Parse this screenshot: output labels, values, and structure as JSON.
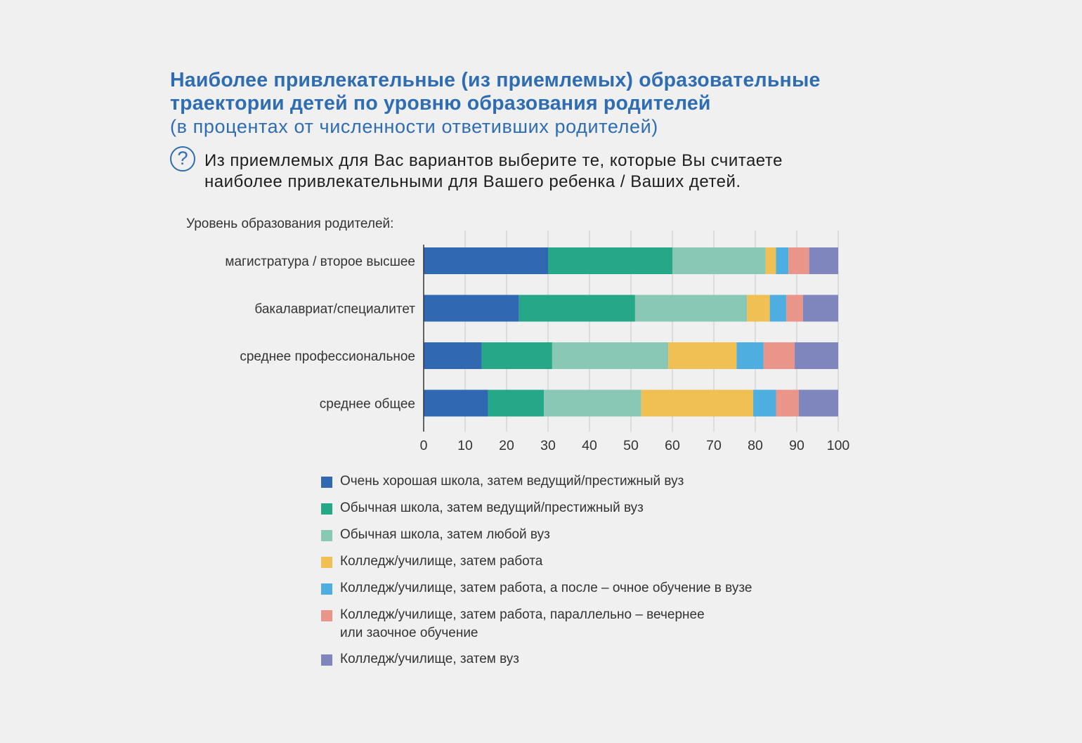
{
  "title_lines": [
    "Наиболее привлекательные (из приемлемых) образовательные",
    "траектории детей по уровню образования родителей"
  ],
  "subtitle": "(в процентах от численности ответивших родителей)",
  "question_icon": "?",
  "question_lines": [
    "Из приемлемых для Вас вариантов выберите те, которые Вы считаете",
    "наиболее привлекательными для Вашего ребенка / Ваших детей."
  ],
  "colors": [
    "#3068b1",
    "#26a888",
    "#88c8b4",
    "#f0c055",
    "#4eaee0",
    "#ea958a",
    "#7f86be"
  ],
  "chart_data": {
    "type": "bar",
    "orientation": "horizontal",
    "stacked": true,
    "ylabel": "Уровень образования родителей:",
    "categories": [
      "магистратура / второе высшее",
      "бакалавриат/специалитет",
      "среднее профессиональное",
      "среднее общее"
    ],
    "series": [
      {
        "name": "Очень хорошая школа, затем ведущий/престижный вуз",
        "values": [
          30,
          23,
          14,
          15.5
        ]
      },
      {
        "name": "Обычная школа, затем ведущий/престижный вуз",
        "values": [
          30,
          28,
          17,
          13.5
        ]
      },
      {
        "name": "Обычная школа, затем любой вуз",
        "values": [
          22.5,
          27,
          28,
          23.5
        ]
      },
      {
        "name": "Колледж/училище, затем работа",
        "values": [
          2.5,
          5.5,
          16.5,
          27
        ]
      },
      {
        "name": "Колледж/училище, затем работа, а после – очное обучение в вузе",
        "values": [
          3,
          4,
          6.5,
          5.5
        ]
      },
      {
        "name": "Колледж/училище, затем работа, параллельно – вечернее\nили заочное обучение",
        "values": [
          5,
          4,
          7.5,
          5.5
        ]
      },
      {
        "name": "Колледж/училище, затем вуз",
        "values": [
          7,
          8.5,
          10.5,
          9.5
        ]
      }
    ],
    "xlim": [
      0,
      100
    ],
    "xticks": [
      0,
      10,
      20,
      30,
      40,
      50,
      60,
      70,
      80,
      90,
      100
    ],
    "grid": true
  }
}
